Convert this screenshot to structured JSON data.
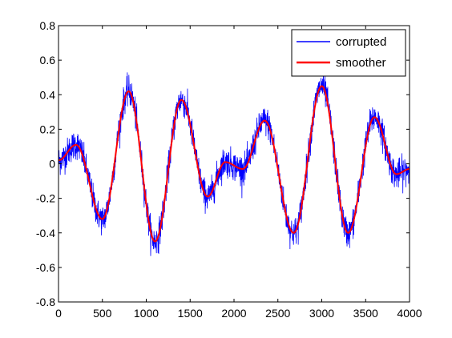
{
  "chart_data": {
    "type": "line",
    "xlim": [
      0,
      4000
    ],
    "ylim": [
      -0.8,
      0.8
    ],
    "x_ticks": [
      0,
      500,
      1000,
      1500,
      2000,
      2500,
      3000,
      3500,
      4000
    ],
    "x_tick_labels": [
      "0",
      "500",
      "1000",
      "1500",
      "2000",
      "2500",
      "3000",
      "3500",
      "4000"
    ],
    "y_ticks": [
      -0.8,
      -0.6,
      -0.4,
      -0.2,
      0,
      0.2,
      0.4,
      0.6,
      0.8
    ],
    "y_tick_labels": [
      "-0.8",
      "-0.6",
      "-0.4",
      "-0.2",
      "0",
      "0.2",
      "0.4",
      "0.6",
      "0.8"
    ],
    "grid": false,
    "legend_position": "top-right",
    "series": [
      {
        "name": "corrupted",
        "color": "#0000ff",
        "noise_amplitude": 0.07,
        "x": [
          0,
          200,
          500,
          800,
          1100,
          1400,
          1700,
          1900,
          2100,
          2350,
          2680,
          3000,
          3300,
          3600,
          3850,
          4000
        ],
        "values": [
          0.02,
          0.11,
          -0.32,
          0.42,
          -0.45,
          0.37,
          -0.19,
          0.01,
          -0.03,
          0.25,
          -0.4,
          0.45,
          -0.4,
          0.27,
          -0.06,
          -0.03
        ]
      },
      {
        "name": "smoother",
        "color": "#ff0000",
        "x": [
          0,
          200,
          500,
          800,
          1100,
          1400,
          1700,
          1900,
          2100,
          2350,
          2680,
          3000,
          3300,
          3600,
          3850,
          4000
        ],
        "values": [
          0.02,
          0.11,
          -0.32,
          0.42,
          -0.45,
          0.37,
          -0.19,
          0.01,
          -0.03,
          0.25,
          -0.4,
          0.45,
          -0.4,
          0.27,
          -0.06,
          -0.03
        ]
      }
    ]
  }
}
